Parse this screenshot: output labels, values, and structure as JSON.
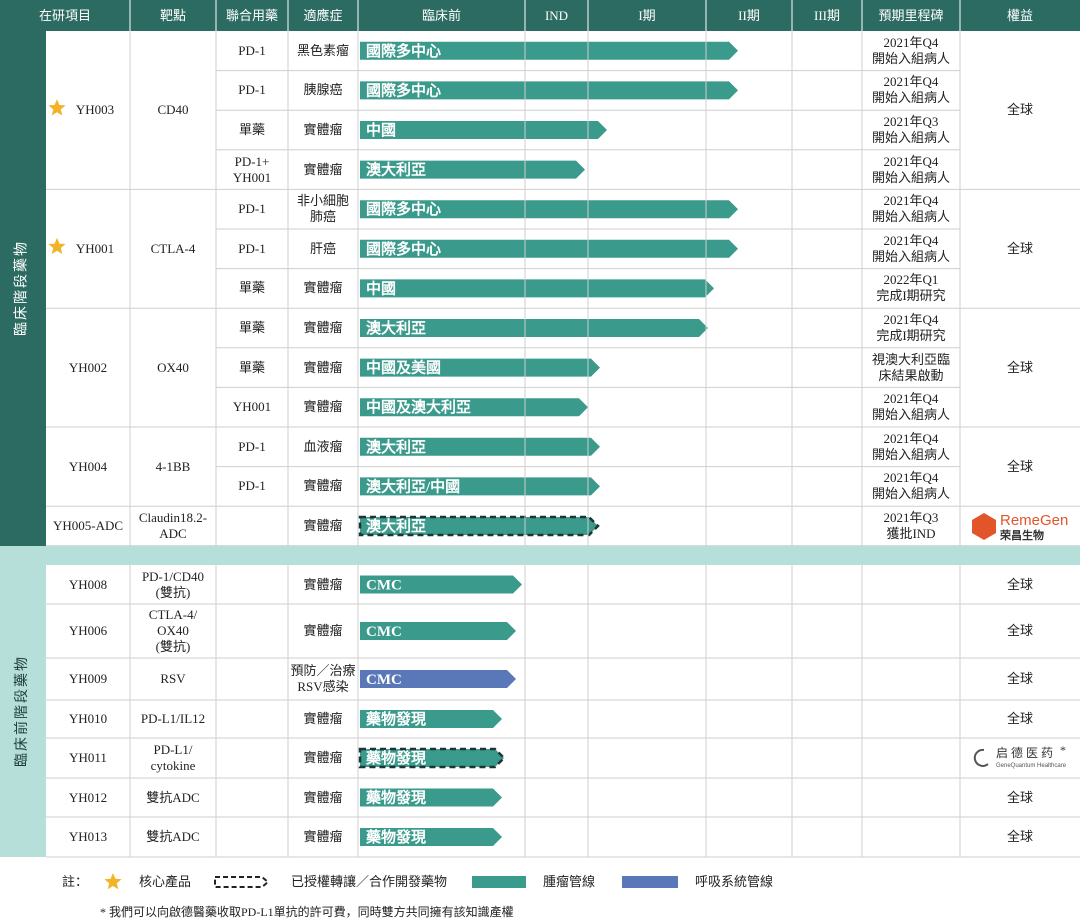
{
  "header": [
    "在研項目",
    "靶點",
    "聯合用藥",
    "適應症",
    "臨床前",
    "IND",
    "I期",
    "II期",
    "III期",
    "預期里程碑",
    "權益"
  ],
  "clinical": {
    "label": "臨床階段藥物",
    "programs": [
      {
        "project": "YH003",
        "target": "CD40",
        "core_product": true,
        "rights": "全球",
        "rows": [
          {
            "combo": "PD-1",
            "indication": "黑色素瘤",
            "region": "國際多中心",
            "milestone": "2021年Q4\n開始入組病人"
          },
          {
            "combo": "PD-1",
            "indication": "胰腺癌",
            "region": "國際多中心",
            "milestone": "2021年Q4\n開始入組病人"
          },
          {
            "combo": "單藥",
            "indication": "實體瘤",
            "region": "中國",
            "milestone": "2021年Q3\n開始入組病人"
          },
          {
            "combo": "PD-1+\nYH001",
            "indication": "實體瘤",
            "region": "澳大利亞",
            "milestone": "2021年Q4\n開始入組病人"
          }
        ]
      },
      {
        "project": "YH001",
        "target": "CTLA-4",
        "core_product": true,
        "rights": "全球",
        "rows": [
          {
            "combo": "PD-1",
            "indication": "非小細胞\n肺癌",
            "region": "國際多中心",
            "milestone": "2021年Q4\n開始入組病人"
          },
          {
            "combo": "PD-1",
            "indication": "肝癌",
            "region": "國際多中心",
            "milestone": "2021年Q4\n開始入組病人"
          },
          {
            "combo": "單藥",
            "indication": "實體瘤",
            "region": "中國",
            "milestone": "2022年Q1\n完成I期研究"
          }
        ]
      },
      {
        "project": "YH002",
        "target": "OX40",
        "rights": "全球",
        "rows": [
          {
            "combo": "單藥",
            "indication": "實體瘤",
            "region": "澳大利亞",
            "milestone": "2021年Q4\n完成I期研究"
          },
          {
            "combo": "單藥",
            "indication": "實體瘤",
            "region": "中國及美國",
            "milestone": "視澳大利亞臨\n床結果啟動"
          },
          {
            "combo": "YH001",
            "indication": "實體瘤",
            "region": "中國及澳大利亞",
            "milestone": "2021年Q4\n開始入組病人"
          }
        ]
      },
      {
        "project": "YH004",
        "target": "4-1BB",
        "rights": "全球",
        "rows": [
          {
            "combo": "PD-1",
            "indication": "血液瘤",
            "region": "澳大利亞",
            "milestone": "2021年Q4\n開始入組病人"
          },
          {
            "combo": "PD-1",
            "indication": "實體瘤",
            "region": "澳大利亞/中國",
            "milestone": "2021年Q4\n開始入組病人"
          }
        ]
      },
      {
        "project": "YH005-ADC",
        "target": "Claudin18.2-\nADC",
        "rights": {
          "name": "RemeGen",
          "cn": "荣昌生物"
        },
        "rows": [
          {
            "indication": "實體瘤",
            "region": "澳大利亞",
            "milestone": "2021年Q3\n獲批IND"
          }
        ]
      }
    ]
  },
  "preclinical": {
    "label": "臨床前階段藥物",
    "programs": [
      {
        "project": "YH008",
        "target": "PD-1/CD40\n(雙抗)",
        "indication": "實體瘤",
        "region": "CMC",
        "rights": "全球"
      },
      {
        "project": "YH006",
        "target": "CTLA-4/\nOX40\n(雙抗)",
        "indication": "實體瘤",
        "region": "CMC",
        "rights": "全球"
      },
      {
        "project": "YH009",
        "target": "RSV",
        "indication": "預防／治療\nRSV感染",
        "region": "CMC",
        "rights": "全球"
      },
      {
        "project": "YH010",
        "target": "PD-L1/IL12",
        "indication": "實體瘤",
        "region": "藥物發現",
        "rights": "全球"
      },
      {
        "project": "YH011",
        "target": "PD-L1/\ncytokine",
        "indication": "實體瘤",
        "region": "藥物發現",
        "rights": {
          "name": "启德医药",
          "en": "GeneQuantum Healthcare",
          "mark": "*"
        }
      },
      {
        "project": "YH012",
        "target": "雙抗ADC",
        "indication": "實體瘤",
        "region": "藥物發現",
        "rights": "全球"
      },
      {
        "project": "YH013",
        "target": "雙抗ADC",
        "indication": "實體瘤",
        "region": "藥物發現",
        "rights": "全球"
      }
    ]
  },
  "legend": {
    "note": "註：",
    "core": "核心產品",
    "licensed": "已授權轉讓／合作開發藥物",
    "oncology": "腫瘤管線",
    "respiratory": "呼吸系統管線"
  },
  "footnote": "* 我們可以向啟德醫藥收取PD-L1單抗的許可費，同時雙方共同擁有該知識產權"
}
